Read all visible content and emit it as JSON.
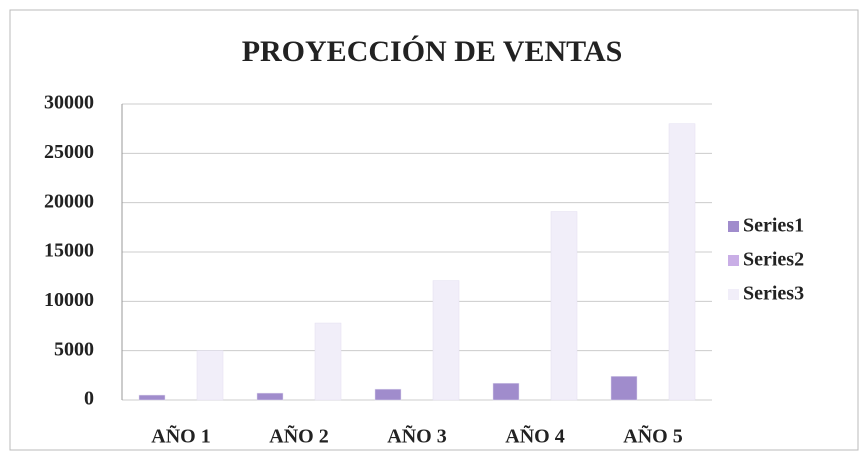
{
  "chart_data": {
    "type": "bar",
    "title": "PROYECCIÓN DE VENTAS",
    "categories": [
      "AÑO 1",
      "AÑO 2",
      "AÑO 3",
      "AÑO 4",
      "AÑO 5"
    ],
    "series": [
      {
        "name": "Series1",
        "color": "#a08ccc",
        "values": [
          500,
          700,
          1100,
          1700,
          2400
        ]
      },
      {
        "name": "Series2",
        "color": "#c9aee6",
        "values": [
          0,
          0,
          0,
          0,
          0
        ]
      },
      {
        "name": "Series3",
        "color": "#f1eef9",
        "values": [
          5000,
          7800,
          12100,
          19100,
          28000
        ]
      }
    ],
    "ylim": [
      0,
      30000
    ],
    "yticks": [
      0,
      5000,
      10000,
      15000,
      20000,
      25000,
      30000
    ],
    "grid": true,
    "legend": "right"
  }
}
